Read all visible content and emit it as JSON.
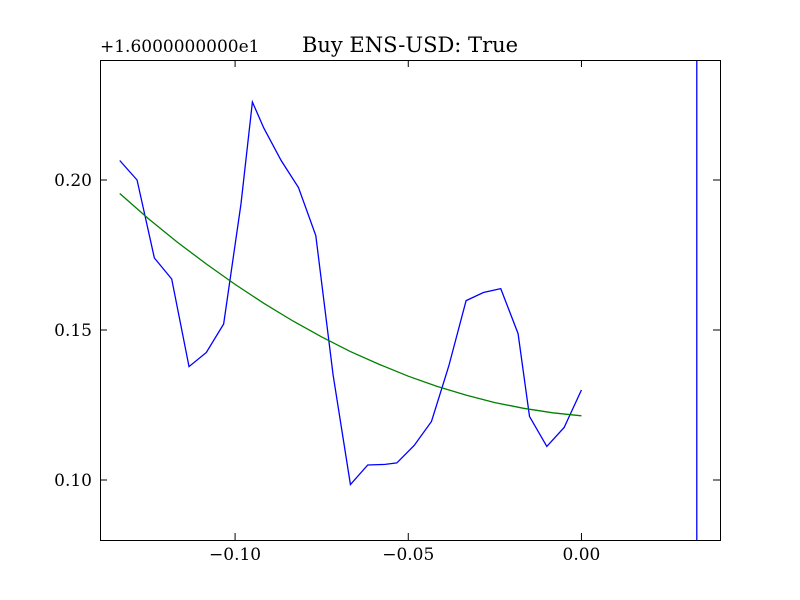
{
  "chart_data": {
    "type": "line",
    "title": "Buy ENS-USD: True",
    "y_offset_label": "+1.6000000000e1",
    "xlabel": "",
    "ylabel": "",
    "xlim": [
      -0.139,
      0.04
    ],
    "ylim": [
      0.08,
      0.24
    ],
    "xticks": [
      {
        "value": -0.1,
        "label": "−0.10"
      },
      {
        "value": -0.05,
        "label": "−0.05"
      },
      {
        "value": 0.0,
        "label": "0.00"
      }
    ],
    "yticks": [
      {
        "value": 0.1,
        "label": "0.10"
      },
      {
        "value": 0.15,
        "label": "0.15"
      },
      {
        "value": 0.2,
        "label": "0.20"
      }
    ],
    "grid": false,
    "legend": "none",
    "series": [
      {
        "color": "#0000ff",
        "style": "line",
        "x": [
          -0.1333,
          -0.1283,
          -0.1233,
          -0.1183,
          -0.1133,
          -0.1083,
          -0.1033,
          -0.0983,
          -0.095,
          -0.0917,
          -0.0867,
          -0.0817,
          -0.0767,
          -0.0717,
          -0.0667,
          -0.0617,
          -0.0567,
          -0.0533,
          -0.0483,
          -0.0433,
          -0.0383,
          -0.0333,
          -0.0283,
          -0.0233,
          -0.0183,
          -0.015,
          -0.01,
          -0.005,
          0.0
        ],
        "y": [
          0.2065,
          0.2,
          0.174,
          0.167,
          0.1378,
          0.1425,
          0.152,
          0.192,
          0.226,
          0.2173,
          0.2065,
          0.1975,
          0.1815,
          0.135,
          0.0985,
          0.105,
          0.1052,
          0.1057,
          0.1115,
          0.1195,
          0.138,
          0.1598,
          0.1625,
          0.1638,
          0.1488,
          0.1212,
          0.1112,
          0.1175,
          0.13
        ]
      },
      {
        "color": "#008000",
        "style": "line",
        "x": [
          -0.1333,
          -0.125,
          -0.1167,
          -0.1083,
          -0.1,
          -0.0917,
          -0.0833,
          -0.075,
          -0.0667,
          -0.0583,
          -0.05,
          -0.0417,
          -0.0333,
          -0.025,
          -0.0167,
          -0.0083,
          0.0
        ],
        "y": [
          0.1955,
          0.1871,
          0.1793,
          0.172,
          0.1652,
          0.1589,
          0.153,
          0.1477,
          0.1428,
          0.1385,
          0.1346,
          0.1312,
          0.1283,
          0.1258,
          0.1239,
          0.1224,
          0.1214
        ]
      },
      {
        "color": "#0000ff",
        "style": "vline",
        "x": [
          0.0333,
          0.0333
        ],
        "y": [
          0.08,
          0.24
        ]
      }
    ]
  }
}
